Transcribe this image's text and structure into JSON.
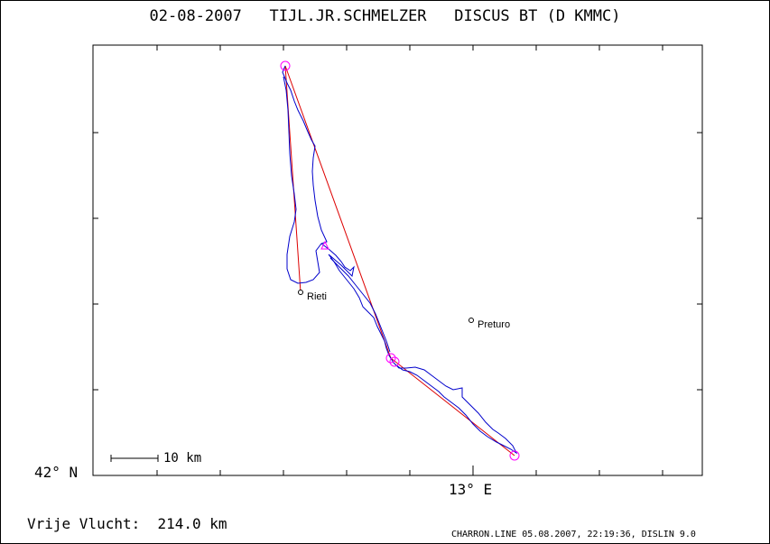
{
  "title": "02-08-2007   TIJL.JR.SCHMELZER   DISCUS BT (D KMMC)",
  "axes": {
    "lat_label": "42° N",
    "lon_label": "13° E"
  },
  "scale_bar": {
    "label": "10 km"
  },
  "towns": [
    {
      "name": "Rieti"
    },
    {
      "name": "Preturo"
    }
  ],
  "free_flight": "Vrije Vlucht:  214.0 km",
  "footer": "CHARRON.LINE 05.08.2007, 22:19:36, DISLIN 9.0",
  "colors": {
    "track": "#0000cc",
    "task": "#dd0000",
    "turnpoint": "#ff00ff",
    "frame": "#000000"
  }
}
